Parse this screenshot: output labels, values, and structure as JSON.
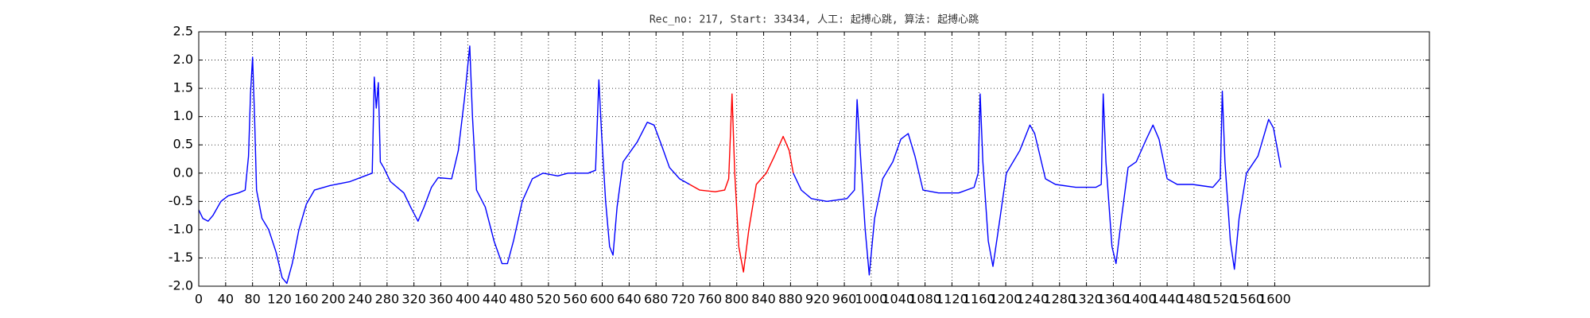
{
  "chart_data": {
    "type": "line",
    "title": "Rec_no: 217, Start: 33434, 人工: 起搏心跳, 算法: 起搏心跳",
    "x": [
      0,
      6,
      14,
      21,
      33,
      44,
      59,
      69,
      74,
      77,
      80,
      83,
      86,
      94,
      104,
      115,
      124,
      131,
      139,
      149,
      160,
      172,
      195,
      225,
      247,
      258,
      261,
      264,
      267,
      270,
      275,
      285,
      305,
      315,
      326,
      335,
      346,
      356,
      376,
      386,
      395,
      403,
      407,
      413,
      426,
      439,
      451,
      459,
      468,
      481,
      496,
      512,
      534,
      549,
      579,
      590,
      595,
      599,
      605,
      611,
      616,
      622,
      631,
      640,
      652,
      667,
      677,
      688,
      700,
      715,
      730,
      745,
      768,
      782,
      788,
      793,
      797,
      803,
      810,
      818,
      829,
      844,
      856,
      869,
      878,
      884,
      896,
      911,
      934,
      964,
      975,
      979,
      984,
      991,
      997,
      1005,
      1017,
      1032,
      1044,
      1055,
      1065,
      1077,
      1100,
      1130,
      1153,
      1159,
      1162,
      1166,
      1174,
      1181,
      1189,
      1201,
      1221,
      1236,
      1243,
      1259,
      1274,
      1304,
      1334,
      1342,
      1345,
      1349,
      1358,
      1364,
      1372,
      1382,
      1394,
      1409,
      1419,
      1428,
      1440,
      1455,
      1478,
      1508,
      1519,
      1522,
      1526,
      1534,
      1540,
      1547,
      1558,
      1575,
      1591,
      1598,
      1609
    ],
    "series": [
      {
        "color": "#0000ff",
        "values": [
          -0.65,
          -0.8,
          -0.85,
          -0.75,
          -0.5,
          -0.4,
          -0.35,
          -0.3,
          0.3,
          1.4,
          2.05,
          1.0,
          -0.3,
          -0.8,
          -1.0,
          -1.4,
          -1.85,
          -1.95,
          -1.6,
          -1.0,
          -0.55,
          -0.3,
          -0.22,
          -0.15,
          -0.05,
          0.0,
          1.7,
          1.15,
          1.6,
          0.2,
          0.1,
          -0.15,
          -0.35,
          -0.6,
          -0.85,
          -0.6,
          -0.25,
          -0.08,
          -0.1,
          0.4,
          1.3,
          2.25,
          1.0,
          -0.3,
          -0.6,
          -1.2,
          -1.6,
          -1.6,
          -1.2,
          -0.5,
          -0.1,
          0.0,
          -0.05,
          0.0,
          0.0,
          0.05,
          1.65,
          0.7,
          -0.5,
          -1.3,
          -1.45,
          -0.6,
          0.2,
          0.35,
          0.55,
          0.9,
          0.85,
          0.5,
          0.1,
          -0.1,
          -0.2,
          null,
          null,
          null,
          null,
          null,
          null,
          null,
          null,
          null,
          null,
          null,
          null,
          null,
          null,
          0.0,
          -0.3,
          -0.45,
          -0.5,
          -0.45,
          -0.3,
          1.3,
          0.3,
          -1.0,
          -1.8,
          -0.8,
          -0.1,
          0.2,
          0.6,
          0.7,
          0.3,
          -0.3,
          -0.35,
          -0.35,
          -0.25,
          0.0,
          1.4,
          0.2,
          -1.2,
          -1.65,
          -1.0,
          0.0,
          0.4,
          0.85,
          0.7,
          -0.1,
          -0.2,
          -0.25,
          -0.25,
          -0.2,
          1.4,
          0.2,
          -1.3,
          -1.6,
          -0.8,
          0.1,
          0.2,
          0.6,
          0.85,
          0.6,
          -0.1,
          -0.2,
          -0.2,
          -0.25,
          -0.1,
          1.45,
          0.2,
          -1.2,
          -1.7,
          -0.8,
          0.0,
          0.3,
          0.95,
          0.8,
          0.1
        ]
      },
      {
        "color": "#ff0000",
        "values": [
          null,
          null,
          null,
          null,
          null,
          null,
          null,
          null,
          null,
          null,
          null,
          null,
          null,
          null,
          null,
          null,
          null,
          null,
          null,
          null,
          null,
          null,
          null,
          null,
          null,
          null,
          null,
          null,
          null,
          null,
          null,
          null,
          null,
          null,
          null,
          null,
          null,
          null,
          null,
          null,
          null,
          null,
          null,
          null,
          null,
          null,
          null,
          null,
          null,
          null,
          null,
          null,
          null,
          null,
          null,
          null,
          null,
          null,
          null,
          null,
          null,
          null,
          null,
          null,
          null,
          null,
          null,
          null,
          null,
          null,
          -0.2,
          -0.3,
          -0.33,
          -0.3,
          -0.1,
          1.4,
          0.0,
          -1.3,
          -1.75,
          -1.0,
          -0.2,
          0.0,
          0.3,
          0.65,
          0.4,
          0.0,
          null,
          null,
          null,
          null,
          null,
          null,
          null,
          null,
          null,
          null,
          null,
          null,
          null,
          null,
          null,
          null,
          null,
          null,
          null,
          null,
          null,
          null,
          null,
          null,
          null,
          null,
          null,
          null,
          null,
          null,
          null,
          null,
          null,
          null,
          null,
          null,
          null,
          null,
          null,
          null,
          null,
          null,
          null,
          null,
          null,
          null,
          null,
          null,
          null,
          null,
          null,
          null,
          null,
          null,
          null,
          null,
          null,
          null,
          null
        ]
      }
    ],
    "xlim": [
      0,
      1830
    ],
    "xticks": [
      0,
      40,
      80,
      120,
      160,
      200,
      240,
      280,
      320,
      360,
      400,
      440,
      480,
      520,
      560,
      600,
      640,
      680,
      720,
      760,
      800,
      840,
      880,
      920,
      960,
      1000,
      1040,
      1080,
      1120,
      1160,
      1200,
      1240,
      1280,
      1320,
      1360,
      1400,
      1440,
      1480,
      1520,
      1560,
      1600
    ],
    "ylim": [
      -2,
      2.5
    ],
    "yticks": [
      {
        "value": -2,
        "label": "-2.0"
      },
      -1.5,
      {
        "value": -1,
        "label": "-1.0"
      },
      -0.5,
      {
        "value": 0,
        "label": "0.0"
      },
      0.5,
      {
        "value": 1,
        "label": "1.0"
      },
      1.5,
      {
        "value": 2,
        "label": "2.0"
      },
      2.5
    ],
    "grid": true
  }
}
